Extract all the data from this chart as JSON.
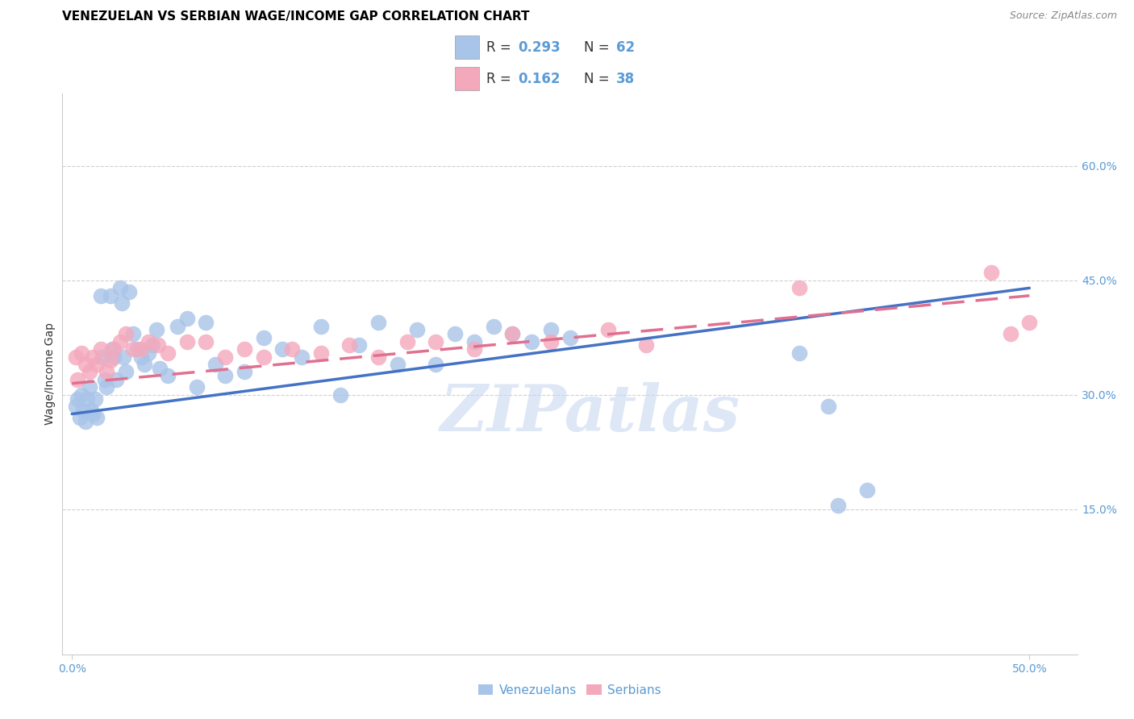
{
  "title": "VENEZUELAN VS SERBIAN WAGE/INCOME GAP CORRELATION CHART",
  "source": "Source: ZipAtlas.com",
  "ylabel": "Wage/Income Gap",
  "ytick_labels": [
    "15.0%",
    "30.0%",
    "45.0%",
    "60.0%"
  ],
  "ytick_vals": [
    0.15,
    0.3,
    0.45,
    0.6
  ],
  "xtick_labels": [
    "0.0%",
    "50.0%"
  ],
  "xtick_vals": [
    0.0,
    0.5
  ],
  "xlim": [
    -0.005,
    0.525
  ],
  "ylim": [
    -0.04,
    0.695
  ],
  "legend_label1": "Venezuelans",
  "legend_label2": "Serbians",
  "blue_color": "#a8c4e8",
  "pink_color": "#f4a8bc",
  "blue_line_color": "#4472c4",
  "pink_line_color": "#e07090",
  "watermark": "ZIPatlas",
  "watermark_color": "#c8d8f0",
  "title_fontsize": 11,
  "source_fontsize": 9,
  "tick_fontsize": 10,
  "ylabel_fontsize": 10,
  "legend_fontsize": 12,
  "blue_r": "0.293",
  "blue_n": "62",
  "pink_r": "0.162",
  "pink_n": "38",
  "ven_x": [
    0.002,
    0.003,
    0.004,
    0.005,
    0.006,
    0.007,
    0.008,
    0.009,
    0.01,
    0.011,
    0.012,
    0.013,
    0.015,
    0.016,
    0.017,
    0.018,
    0.02,
    0.021,
    0.022,
    0.023,
    0.025,
    0.026,
    0.027,
    0.028,
    0.03,
    0.032,
    0.034,
    0.036,
    0.038,
    0.04,
    0.042,
    0.044,
    0.046,
    0.05,
    0.055,
    0.06,
    0.065,
    0.07,
    0.075,
    0.08,
    0.09,
    0.1,
    0.11,
    0.12,
    0.13,
    0.14,
    0.15,
    0.16,
    0.17,
    0.18,
    0.19,
    0.2,
    0.21,
    0.22,
    0.23,
    0.24,
    0.25,
    0.26,
    0.38,
    0.395,
    0.4,
    0.415
  ],
  "ven_y": [
    0.285,
    0.295,
    0.27,
    0.3,
    0.28,
    0.265,
    0.295,
    0.31,
    0.28,
    0.275,
    0.295,
    0.27,
    0.43,
    0.35,
    0.32,
    0.31,
    0.43,
    0.36,
    0.35,
    0.32,
    0.44,
    0.42,
    0.35,
    0.33,
    0.435,
    0.38,
    0.36,
    0.35,
    0.34,
    0.355,
    0.365,
    0.385,
    0.335,
    0.325,
    0.39,
    0.4,
    0.31,
    0.395,
    0.34,
    0.325,
    0.33,
    0.375,
    0.36,
    0.35,
    0.39,
    0.3,
    0.365,
    0.395,
    0.34,
    0.385,
    0.34,
    0.38,
    0.37,
    0.39,
    0.38,
    0.37,
    0.385,
    0.375,
    0.355,
    0.285,
    0.155,
    0.175
  ],
  "serb_x": [
    0.002,
    0.003,
    0.005,
    0.007,
    0.009,
    0.011,
    0.013,
    0.015,
    0.018,
    0.02,
    0.022,
    0.025,
    0.028,
    0.032,
    0.036,
    0.04,
    0.045,
    0.05,
    0.06,
    0.07,
    0.08,
    0.09,
    0.1,
    0.115,
    0.13,
    0.145,
    0.16,
    0.175,
    0.19,
    0.21,
    0.23,
    0.25,
    0.28,
    0.3,
    0.38,
    0.48,
    0.49,
    0.5
  ],
  "serb_y": [
    0.35,
    0.32,
    0.355,
    0.34,
    0.33,
    0.35,
    0.34,
    0.36,
    0.33,
    0.345,
    0.36,
    0.37,
    0.38,
    0.36,
    0.36,
    0.37,
    0.365,
    0.355,
    0.37,
    0.37,
    0.35,
    0.36,
    0.35,
    0.36,
    0.355,
    0.365,
    0.35,
    0.37,
    0.37,
    0.36,
    0.38,
    0.37,
    0.385,
    0.365,
    0.44,
    0.46,
    0.38,
    0.395
  ],
  "ven_line_x0": 0.0,
  "ven_line_x1": 0.5,
  "ven_line_y0": 0.275,
  "ven_line_y1": 0.44,
  "serb_line_x0": 0.0,
  "serb_line_x1": 0.5,
  "serb_line_y0": 0.315,
  "serb_line_y1": 0.43
}
